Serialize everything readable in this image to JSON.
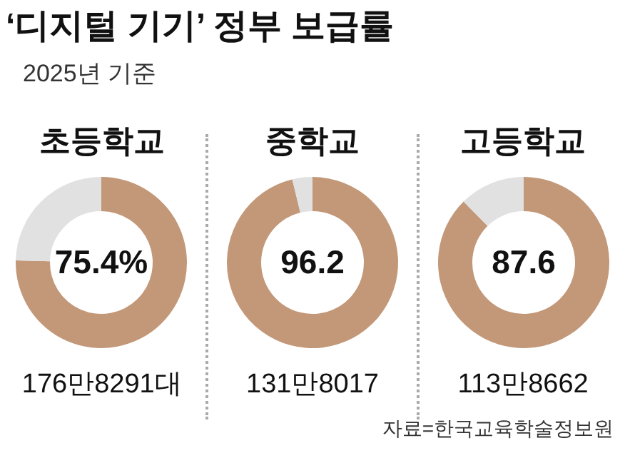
{
  "chart_data": [
    {
      "type": "other",
      "title": "‘디지털 기기’ 정부 보급률",
      "subtitle": "2025년 기준",
      "annotations": [
        "자료=한국교육학술정보원"
      ]
    },
    {
      "type": "donut",
      "title": "초등학교",
      "categories": [
        null,
        null
      ],
      "values": [
        75.4,
        24.6
      ],
      "colors": [
        "#c39879",
        "#e1e1e1"
      ],
      "value_labels": [
        "75.4%",
        null
      ],
      "annotations": [
        "176만8291대"
      ]
    },
    {
      "type": "donut",
      "title": "중학교",
      "categories": [
        null,
        null
      ],
      "values": [
        96.2,
        3.8
      ],
      "colors": [
        "#c39879",
        "#e1e1e1"
      ],
      "value_labels": [
        "96.2",
        null
      ],
      "annotations": [
        "131만8017"
      ]
    },
    {
      "type": "donut",
      "title": "고등학교",
      "categories": [
        null,
        null
      ],
      "values": [
        87.6,
        12.4
      ],
      "colors": [
        "#c39879",
        "#e1e1e1"
      ],
      "value_labels": [
        "87.6",
        null
      ],
      "annotations": [
        "113만8662"
      ]
    }
  ]
}
